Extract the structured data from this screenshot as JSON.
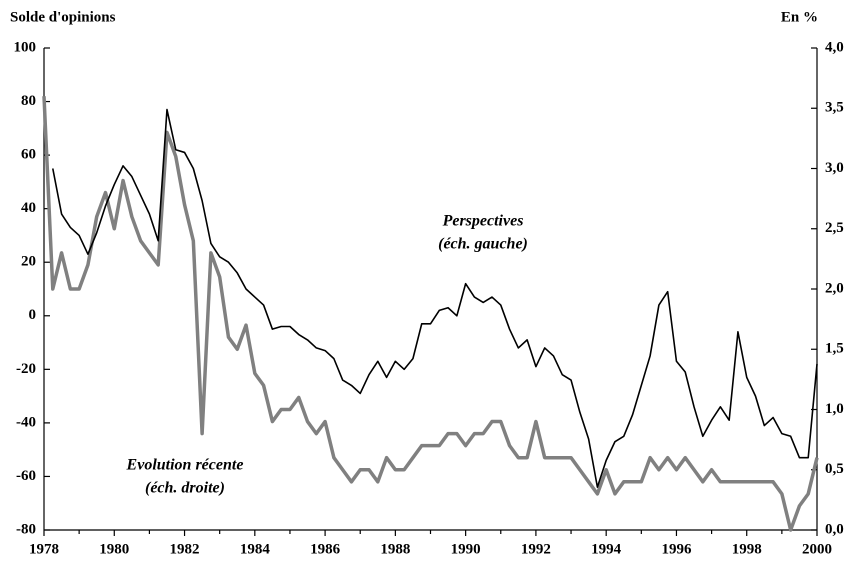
{
  "chart_data": {
    "type": "line",
    "y_label": "Solde d'opinions",
    "y2_label": "En %",
    "x": [
      1978.0,
      1978.25,
      1978.5,
      1978.75,
      1979.0,
      1979.25,
      1979.5,
      1979.75,
      1980.0,
      1980.25,
      1980.5,
      1980.75,
      1981.0,
      1981.25,
      1981.5,
      1981.75,
      1982.0,
      1982.25,
      1982.5,
      1982.75,
      1983.0,
      1983.25,
      1983.5,
      1983.75,
      1984.0,
      1984.25,
      1984.5,
      1984.75,
      1985.0,
      1985.25,
      1985.5,
      1985.75,
      1986.0,
      1986.25,
      1986.5,
      1986.75,
      1987.0,
      1987.25,
      1987.5,
      1987.75,
      1988.0,
      1988.25,
      1988.5,
      1988.75,
      1989.0,
      1989.25,
      1989.5,
      1989.75,
      1990.0,
      1990.25,
      1990.5,
      1990.75,
      1991.0,
      1991.25,
      1991.5,
      1991.75,
      1992.0,
      1992.25,
      1992.5,
      1992.75,
      1993.0,
      1993.25,
      1993.5,
      1993.75,
      1994.0,
      1994.25,
      1994.5,
      1994.75,
      1995.0,
      1995.25,
      1995.5,
      1995.75,
      1996.0,
      1996.25,
      1996.5,
      1996.75,
      1997.0,
      1997.25,
      1997.5,
      1997.75,
      1998.0,
      1998.25,
      1998.5,
      1998.75,
      1999.0,
      1999.25,
      1999.5,
      1999.75,
      2000.0
    ],
    "series": [
      {
        "name": "Perspectives",
        "note": "(éch. gauche)",
        "color": "#000000",
        "axis": "y",
        "values": [
          null,
          55,
          38,
          33,
          30,
          23,
          31,
          41,
          49,
          56,
          52,
          45,
          38,
          28,
          77,
          62,
          61,
          55,
          43,
          27,
          22,
          20,
          16,
          10,
          7,
          4,
          -5,
          -4,
          -4,
          -7,
          -9,
          -12,
          -13,
          -16,
          -24,
          -26,
          -29,
          -22,
          -17,
          -23,
          -17,
          -20,
          -16,
          -3,
          -3,
          2,
          3,
          0,
          12,
          7,
          5,
          7,
          4,
          -5,
          -12,
          -9,
          -19,
          -12,
          -15,
          -22,
          -24,
          -36,
          -46,
          -64,
          -54,
          -47,
          -45,
          -37,
          -26,
          -15,
          4,
          9,
          -17,
          -21,
          -34,
          -45,
          -39,
          -34,
          -39,
          -6,
          -23,
          -30,
          -41,
          -38,
          -44,
          -45,
          -53,
          -53,
          -18
        ]
      },
      {
        "name": "Evolution récente",
        "note": "(éch. droite)",
        "color": "#808080",
        "axis": "y2",
        "values": [
          3.6,
          2.0,
          2.3,
          2.0,
          2.0,
          2.2,
          2.6,
          2.8,
          2.5,
          2.9,
          2.6,
          2.4,
          2.3,
          2.2,
          3.3,
          3.1,
          2.7,
          2.4,
          0.8,
          2.3,
          2.1,
          1.6,
          1.5,
          1.7,
          1.3,
          1.2,
          0.9,
          1.0,
          1.0,
          1.1,
          0.9,
          0.8,
          0.9,
          0.6,
          0.5,
          0.4,
          0.5,
          0.5,
          0.4,
          0.6,
          0.5,
          0.5,
          0.6,
          0.7,
          0.7,
          0.7,
          0.8,
          0.8,
          0.7,
          0.8,
          0.8,
          0.9,
          0.9,
          0.7,
          0.6,
          0.6,
          0.9,
          0.6,
          0.6,
          0.6,
          0.6,
          0.5,
          0.4,
          0.3,
          0.5,
          0.3,
          0.4,
          0.4,
          0.4,
          0.6,
          0.5,
          0.6,
          0.5,
          0.6,
          0.5,
          0.4,
          0.5,
          0.4,
          0.4,
          0.4,
          0.4,
          0.4,
          0.4,
          0.4,
          0.3,
          0.0,
          0.2,
          0.3,
          0.6
        ]
      }
    ],
    "xlim": [
      1978,
      2000
    ],
    "xticks": [
      1978,
      1980,
      1982,
      1984,
      1986,
      1988,
      1990,
      1992,
      1994,
      1996,
      1998,
      2000
    ],
    "xticks_minor": [
      1979,
      1981,
      1983,
      1985,
      1987,
      1989,
      1991,
      1993,
      1995,
      1997,
      1999
    ],
    "ylim": [
      -80,
      100
    ],
    "yticks": [
      -80,
      -60,
      -40,
      -20,
      0,
      20,
      40,
      60,
      80,
      100
    ],
    "y2lim": [
      0,
      4
    ],
    "y2ticks": [
      {
        "value": 0,
        "label": "0,0"
      },
      {
        "value": 0.5,
        "label": "0,5"
      },
      {
        "value": 1,
        "label": "1,0"
      },
      {
        "value": 1.5,
        "label": "1,5"
      },
      {
        "value": 2,
        "label": "2,0"
      },
      {
        "value": 2.5,
        "label": "2,5"
      },
      {
        "value": 3,
        "label": "3,0"
      },
      {
        "value": 3.5,
        "label": "3,5"
      },
      {
        "value": 4,
        "label": "4,0"
      }
    ],
    "grid": false
  }
}
